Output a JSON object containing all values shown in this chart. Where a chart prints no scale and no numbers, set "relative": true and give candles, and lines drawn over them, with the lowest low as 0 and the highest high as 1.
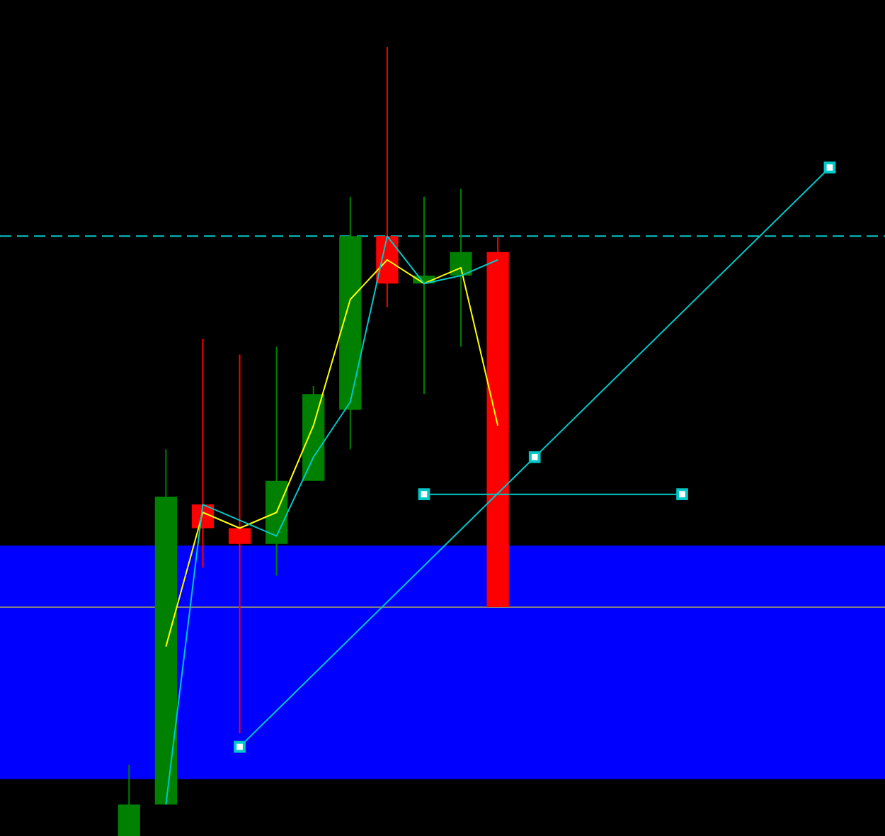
{
  "chart_data": {
    "type": "candlestick",
    "relative": true,
    "categories": [
      null,
      null,
      null,
      null,
      null,
      null,
      null,
      null,
      null,
      null,
      null,
      null,
      null,
      null,
      null,
      null,
      null,
      null,
      null,
      null,
      null,
      null,
      null,
      null
    ],
    "ohlc": [
      null,
      null,
      null,
      [
        0,
        0.09,
        0,
        0.04
      ],
      [
        0.04,
        0.49,
        0.04,
        0.43
      ],
      [
        0.42,
        0.63,
        0.34,
        0.39
      ],
      [
        0.39,
        0.61,
        0.13,
        0.37
      ],
      [
        0.37,
        0.62,
        0.33,
        0.45
      ],
      [
        0.45,
        0.57,
        0.45,
        0.56
      ],
      [
        0.54,
        0.81,
        0.49,
        0.76
      ],
      [
        0.76,
        1,
        0.67,
        0.7
      ],
      [
        0.7,
        0.81,
        0.56,
        0.71
      ],
      [
        0.71,
        0.82,
        0.62,
        0.74
      ],
      [
        0.74,
        0.76,
        0.29,
        0.29
      ],
      null,
      null,
      null,
      null,
      null,
      null,
      null,
      null,
      null,
      null
    ],
    "colors": [
      null,
      null,
      null,
      "#008000",
      "#008000",
      "#ff0000",
      "#ff0000",
      "#008000",
      "#008000",
      "#008000",
      "#ff0000",
      "#008000",
      "#008000",
      "#ff0000",
      null,
      null,
      null,
      null,
      null,
      null,
      null,
      null,
      null,
      null
    ],
    "series": [
      {
        "type": "line",
        "color": "#ffff00",
        "marker": "none",
        "values": [
          null,
          null,
          null,
          null,
          0.24,
          0.41,
          0.39,
          0.41,
          0.52,
          0.68,
          0.73,
          0.7,
          0.72,
          0.52,
          null,
          null,
          null,
          null,
          null,
          null,
          null,
          null,
          null,
          null
        ]
      },
      {
        "type": "line",
        "color": "#00c8c8",
        "marker": "none",
        "values": [
          null,
          null,
          null,
          null,
          0.04,
          0.42,
          0.4,
          0.38,
          0.48,
          0.55,
          0.76,
          0.7,
          0.71,
          0.73,
          null,
          null,
          null,
          null,
          null,
          null,
          null,
          null,
          null,
          null
        ]
      },
      {
        "type": "line",
        "color": "#00c8c8",
        "marker": "square",
        "values": [
          null,
          null,
          null,
          null,
          null,
          null,
          0.113,
          null,
          null,
          null,
          null,
          null,
          null,
          null,
          0.48,
          null,
          null,
          null,
          null,
          null,
          null,
          null,
          0.847,
          null
        ]
      },
      {
        "type": "line",
        "color": "#00c8c8",
        "marker": "square",
        "values": [
          null,
          null,
          null,
          null,
          null,
          null,
          null,
          null,
          null,
          null,
          null,
          0.433,
          null,
          null,
          null,
          null,
          null,
          null,
          0.433,
          null,
          null,
          null,
          null,
          null
        ]
      }
    ],
    "ref_lines": [
      {
        "axis": "y",
        "value": 0.76,
        "color": "#00c8c8",
        "line_style": "dashed"
      },
      {
        "axis": "y",
        "value": 0.29,
        "color": "#808080",
        "line_style": "solid"
      }
    ],
    "bands": [
      {
        "axis": "y",
        "from": 0.072,
        "to": 0.368,
        "color": "#0000ff"
      }
    ]
  }
}
